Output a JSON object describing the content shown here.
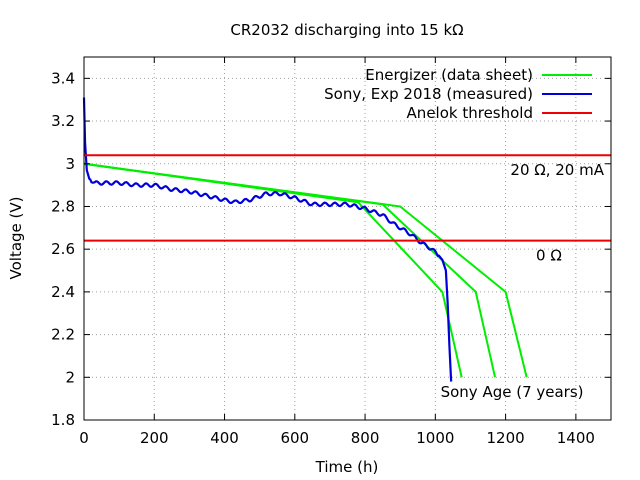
{
  "chart_data": {
    "type": "line",
    "title": "CR2032 discharging into 15 kΩ",
    "xlabel": "Time (h)",
    "ylabel": "Voltage (V)",
    "xlim": [
      0,
      1500
    ],
    "ylim": [
      1.8,
      3.5
    ],
    "xticks": [
      0,
      200,
      400,
      600,
      800,
      1000,
      1200,
      1400
    ],
    "yticks": [
      1.8,
      2,
      2.2,
      2.4,
      2.6,
      2.8,
      3,
      3.2,
      3.4
    ],
    "ytick_labels": [
      "1.8",
      "2",
      "2.2",
      "2.4",
      "2.6",
      "2.8",
      "3",
      "3.2",
      "3.4"
    ],
    "grid": true,
    "legend_position": "top-right",
    "legend": [
      {
        "label": "Energizer (data sheet)",
        "color": "#00ee00"
      },
      {
        "label": "Sony, Exp 2018 (measured)",
        "color": "#0000dd"
      },
      {
        "label": "Anelok threshold",
        "color": "#ee0000"
      }
    ],
    "series": [
      {
        "name": "Energizer (data sheet) A",
        "color": "#00ee00",
        "x": [
          0,
          780,
          1020,
          1075
        ],
        "y": [
          3.0,
          2.82,
          2.4,
          2.0
        ]
      },
      {
        "name": "Energizer (data sheet) B",
        "color": "#00ee00",
        "x": [
          0,
          850,
          1115,
          1170
        ],
        "y": [
          3.0,
          2.81,
          2.4,
          2.0
        ]
      },
      {
        "name": "Energizer (data sheet) C",
        "color": "#00ee00",
        "x": [
          0,
          900,
          1200,
          1260
        ],
        "y": [
          3.0,
          2.8,
          2.4,
          2.0
        ]
      },
      {
        "name": "Sony, Exp 2018 (measured)",
        "color": "#0000dd",
        "x": [
          0,
          3,
          8,
          15,
          30,
          60,
          100,
          150,
          200,
          250,
          300,
          350,
          400,
          430,
          470,
          520,
          560,
          600,
          650,
          700,
          750,
          800,
          850,
          880,
          900,
          930,
          960,
          990,
          1010,
          1020,
          1030,
          1035,
          1040,
          1045
        ],
        "y": [
          3.31,
          3.1,
          2.97,
          2.93,
          2.91,
          2.91,
          2.91,
          2.9,
          2.9,
          2.88,
          2.87,
          2.85,
          2.83,
          2.82,
          2.83,
          2.86,
          2.86,
          2.84,
          2.81,
          2.81,
          2.81,
          2.79,
          2.76,
          2.72,
          2.7,
          2.67,
          2.63,
          2.6,
          2.57,
          2.55,
          2.5,
          2.35,
          2.15,
          1.98
        ],
        "ripple": true
      },
      {
        "name": "Anelok threshold (20 Ω, 20 mA)",
        "color": "#ee0000",
        "x": [
          0,
          1500
        ],
        "y": [
          3.04,
          3.04
        ]
      },
      {
        "name": "Anelok threshold (0 Ω)",
        "color": "#ee0000",
        "x": [
          0,
          1500
        ],
        "y": [
          2.64,
          2.64
        ]
      }
    ],
    "annotations": [
      {
        "text": "20 Ω, 20 mA",
        "x": 1500,
        "y": 2.97,
        "align": "right"
      },
      {
        "text": "0 Ω",
        "x": 1380,
        "y": 2.57,
        "align": "right"
      },
      {
        "text": "Sony Age (7 years)",
        "x": 1015,
        "y": 1.93,
        "align": "left"
      }
    ]
  }
}
